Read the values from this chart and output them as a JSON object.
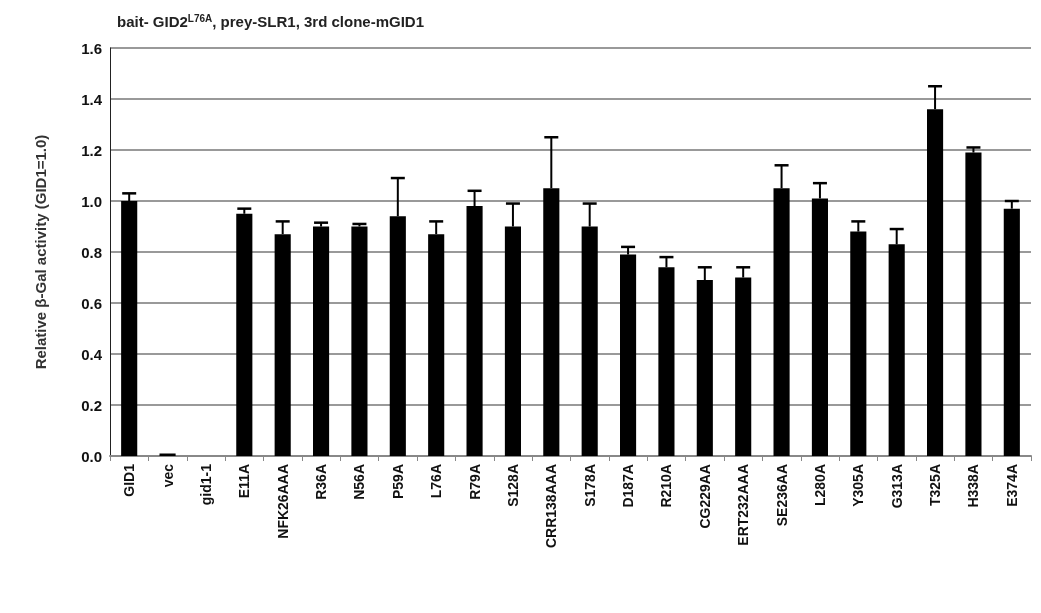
{
  "chart_data": {
    "type": "bar",
    "title": "bait- GID2$^{L76A}$, prey-SLR1, 3rd clone-mGID1",
    "ylabel": "Relative β-Gal activity (GID1=1.0)",
    "categories": [
      "GID1",
      "vec",
      "gid1-1",
      "E11A",
      "NFK26AAA",
      "R36A",
      "N56A",
      "P59A",
      "L76A",
      "R79A",
      "S128A",
      "CRR138AAA",
      "S178A",
      "D187A",
      "R210A",
      "CG229AA",
      "ERT232AAA",
      "SE236AA",
      "L280A",
      "Y305A",
      "G313A",
      "T325A",
      "H338A",
      "E374A"
    ],
    "series": [
      {
        "color": "#000000",
        "values": [
          1.0,
          0.01,
          0.0,
          0.95,
          0.87,
          0.9,
          0.9,
          0.94,
          0.87,
          0.98,
          0.9,
          1.05,
          0.9,
          0.79,
          0.74,
          0.69,
          0.7,
          1.05,
          1.01,
          0.88,
          0.83,
          1.36,
          1.19,
          0.97
        ],
        "errors": [
          [
            1.0,
            1.03
          ],
          null,
          null,
          [
            0.95,
            0.97
          ],
          [
            0.87,
            0.92
          ],
          [
            0.9,
            0.915
          ],
          [
            0.9,
            0.91
          ],
          [
            0.94,
            1.09
          ],
          [
            0.87,
            0.92
          ],
          [
            0.98,
            1.04
          ],
          [
            0.9,
            0.99
          ],
          [
            1.05,
            1.25
          ],
          [
            0.9,
            0.99
          ],
          [
            0.79,
            0.82
          ],
          [
            0.74,
            0.78
          ],
          [
            0.69,
            0.74
          ],
          [
            0.7,
            0.74
          ],
          [
            1.05,
            1.14
          ],
          [
            1.01,
            1.07
          ],
          [
            0.88,
            0.92
          ],
          [
            0.83,
            0.89
          ],
          [
            1.36,
            1.45
          ],
          [
            1.19,
            1.21
          ],
          [
            0.97,
            1.0
          ]
        ]
      }
    ],
    "ylim": [
      0,
      1.6
    ],
    "yticks": [
      {
        "value": 0,
        "label": "0.0"
      },
      {
        "value": 0.2,
        "label": "0.2"
      },
      {
        "value": 0.4,
        "label": "0.4"
      },
      {
        "value": 0.6,
        "label": "0.6"
      },
      {
        "value": 0.8,
        "label": "0.8"
      },
      {
        "value": 1.0,
        "label": "1.0"
      },
      {
        "value": 1.2,
        "label": "1.2"
      },
      {
        "value": 1.4,
        "label": "1.4"
      },
      {
        "value": 1.6,
        "label": "1.6"
      }
    ],
    "grid": "y"
  }
}
